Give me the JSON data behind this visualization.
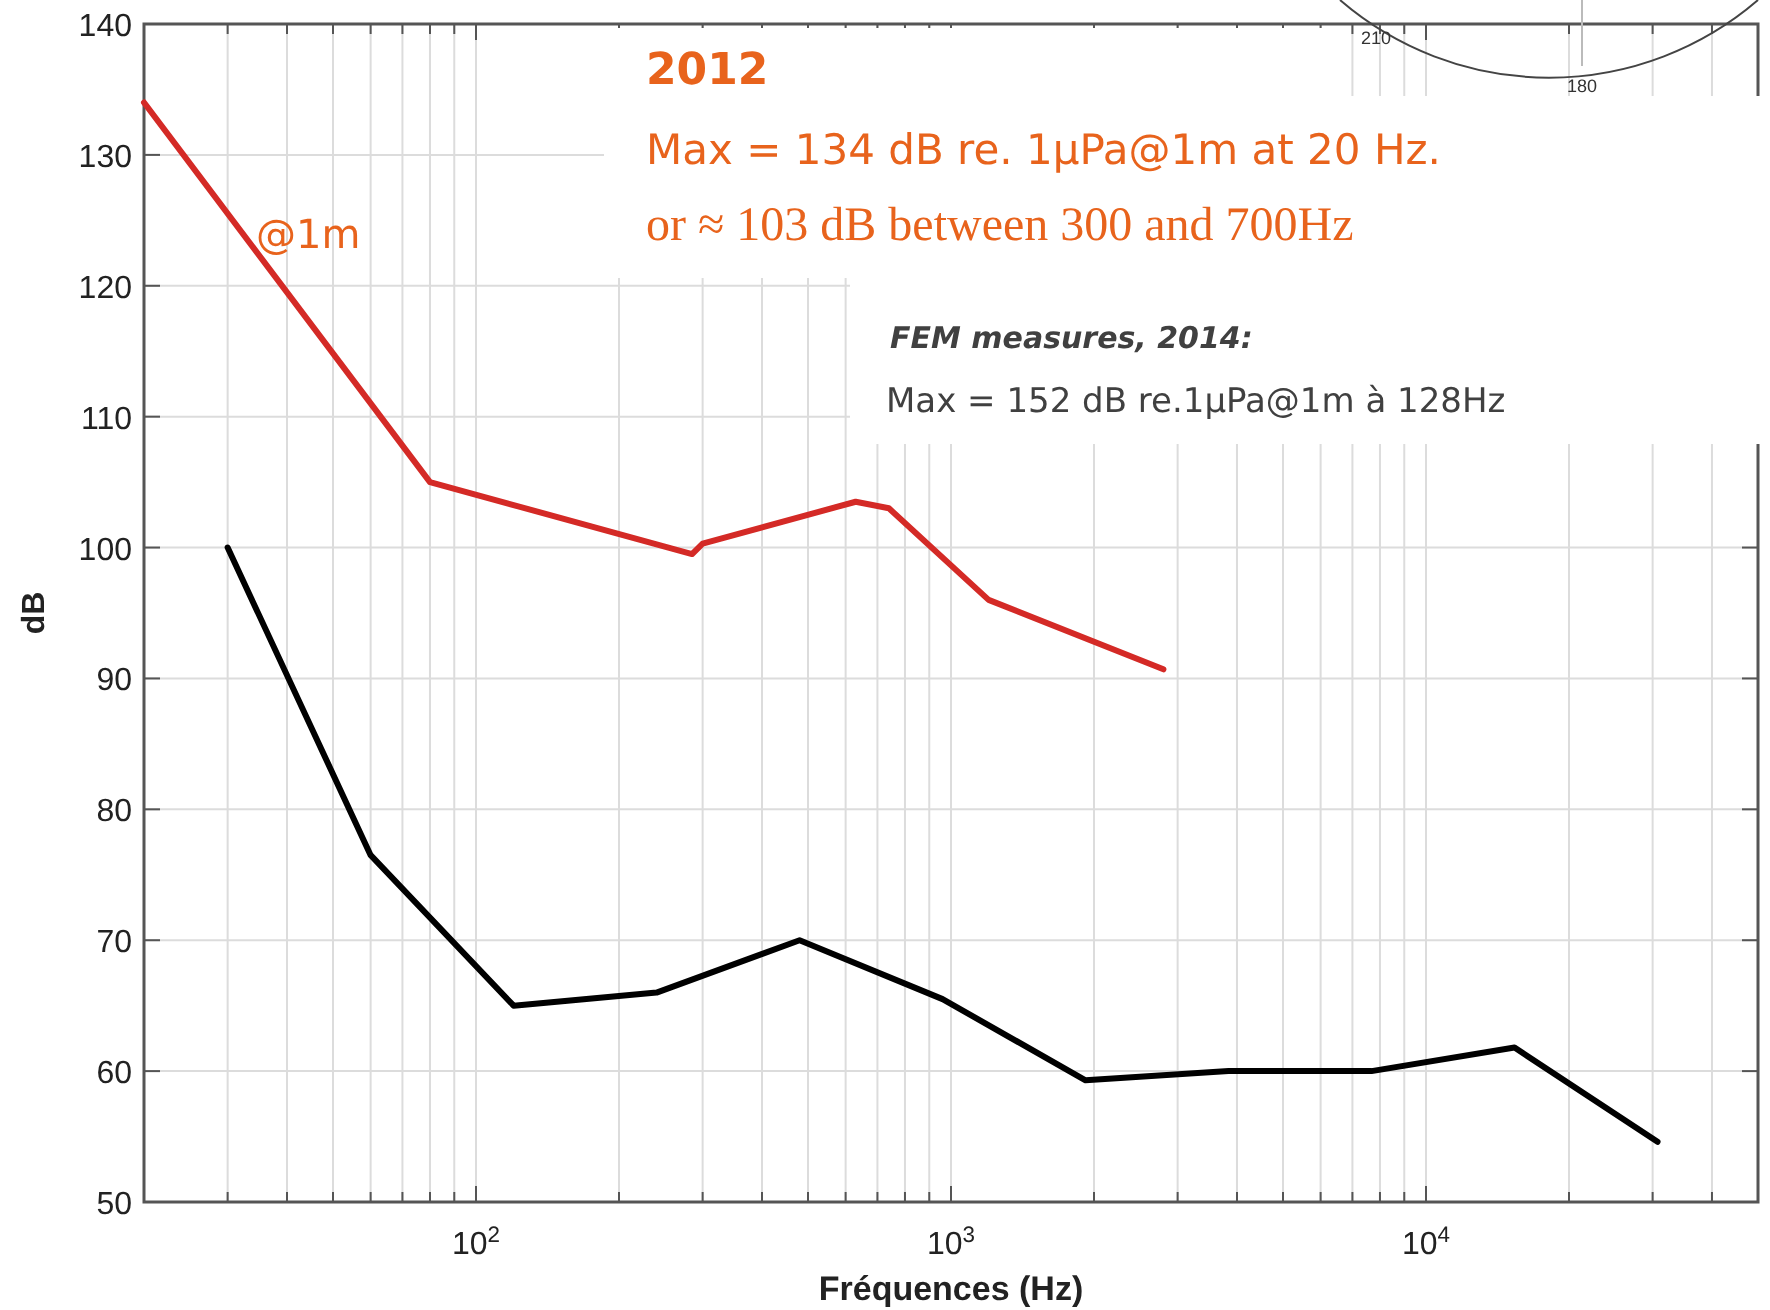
{
  "chart_data": {
    "type": "line",
    "xlabel": "Fréquences (Hz)",
    "ylabel": "dB",
    "log": "x",
    "grid": true,
    "line_style": "solid",
    "marker": "none",
    "xlim": [
      20,
      50000
    ],
    "ylim": [
      50,
      140
    ],
    "xticks": [
      {
        "value": 30,
        "label": null
      },
      {
        "value": 40,
        "label": null
      },
      {
        "value": 50,
        "label": null
      },
      {
        "value": 60,
        "label": null
      },
      {
        "value": 70,
        "label": null
      },
      {
        "value": 80,
        "label": null
      },
      {
        "value": 90,
        "label": null
      },
      {
        "value": 100,
        "label": "10$^{2}$"
      },
      {
        "value": 200,
        "label": null
      },
      {
        "value": 300,
        "label": null
      },
      {
        "value": 400,
        "label": null
      },
      {
        "value": 500,
        "label": null
      },
      {
        "value": 600,
        "label": null
      },
      {
        "value": 700,
        "label": null
      },
      {
        "value": 800,
        "label": null
      },
      {
        "value": 900,
        "label": null
      },
      {
        "value": 1000,
        "label": "10$^{3}$"
      },
      {
        "value": 2000,
        "label": null
      },
      {
        "value": 3000,
        "label": null
      },
      {
        "value": 4000,
        "label": null
      },
      {
        "value": 5000,
        "label": null
      },
      {
        "value": 6000,
        "label": null
      },
      {
        "value": 7000,
        "label": null
      },
      {
        "value": 8000,
        "label": null
      },
      {
        "value": 9000,
        "label": null
      },
      {
        "value": 10000,
        "label": "10$^{4}$"
      },
      {
        "value": 20000,
        "label": null
      },
      {
        "value": 30000,
        "label": null
      },
      {
        "value": 40000,
        "label": null
      }
    ],
    "yticks": [
      50,
      60,
      70,
      80,
      90,
      100,
      110,
      120,
      130,
      140
    ],
    "series": [
      {
        "color": "#d42a26",
        "x": [
          20,
          80,
          285,
          300,
          630,
          740,
          1200,
          2800
        ],
        "values": [
          134,
          105,
          99.5,
          100.3,
          103.5,
          103,
          96,
          90.7
        ]
      },
      {
        "color": "#000000",
        "x": [
          30,
          60,
          120,
          240,
          480,
          960,
          1920,
          3840,
          7680,
          15360,
          30720
        ],
        "values": [
          100,
          76.5,
          65,
          66,
          70,
          65.5,
          59.3,
          60,
          60,
          61.8,
          54.6
        ]
      }
    ],
    "annotations": [
      "2012",
      "Max = 134 dB re. 1μPa@1m at 20 Hz.",
      "or ≈ 103 dB between 300 and 700Hz",
      "@1m",
      "FEM measures, 2014:",
      "Max = 152 dB re.1μPa@1m à 128Hz",
      "210",
      "180"
    ]
  }
}
